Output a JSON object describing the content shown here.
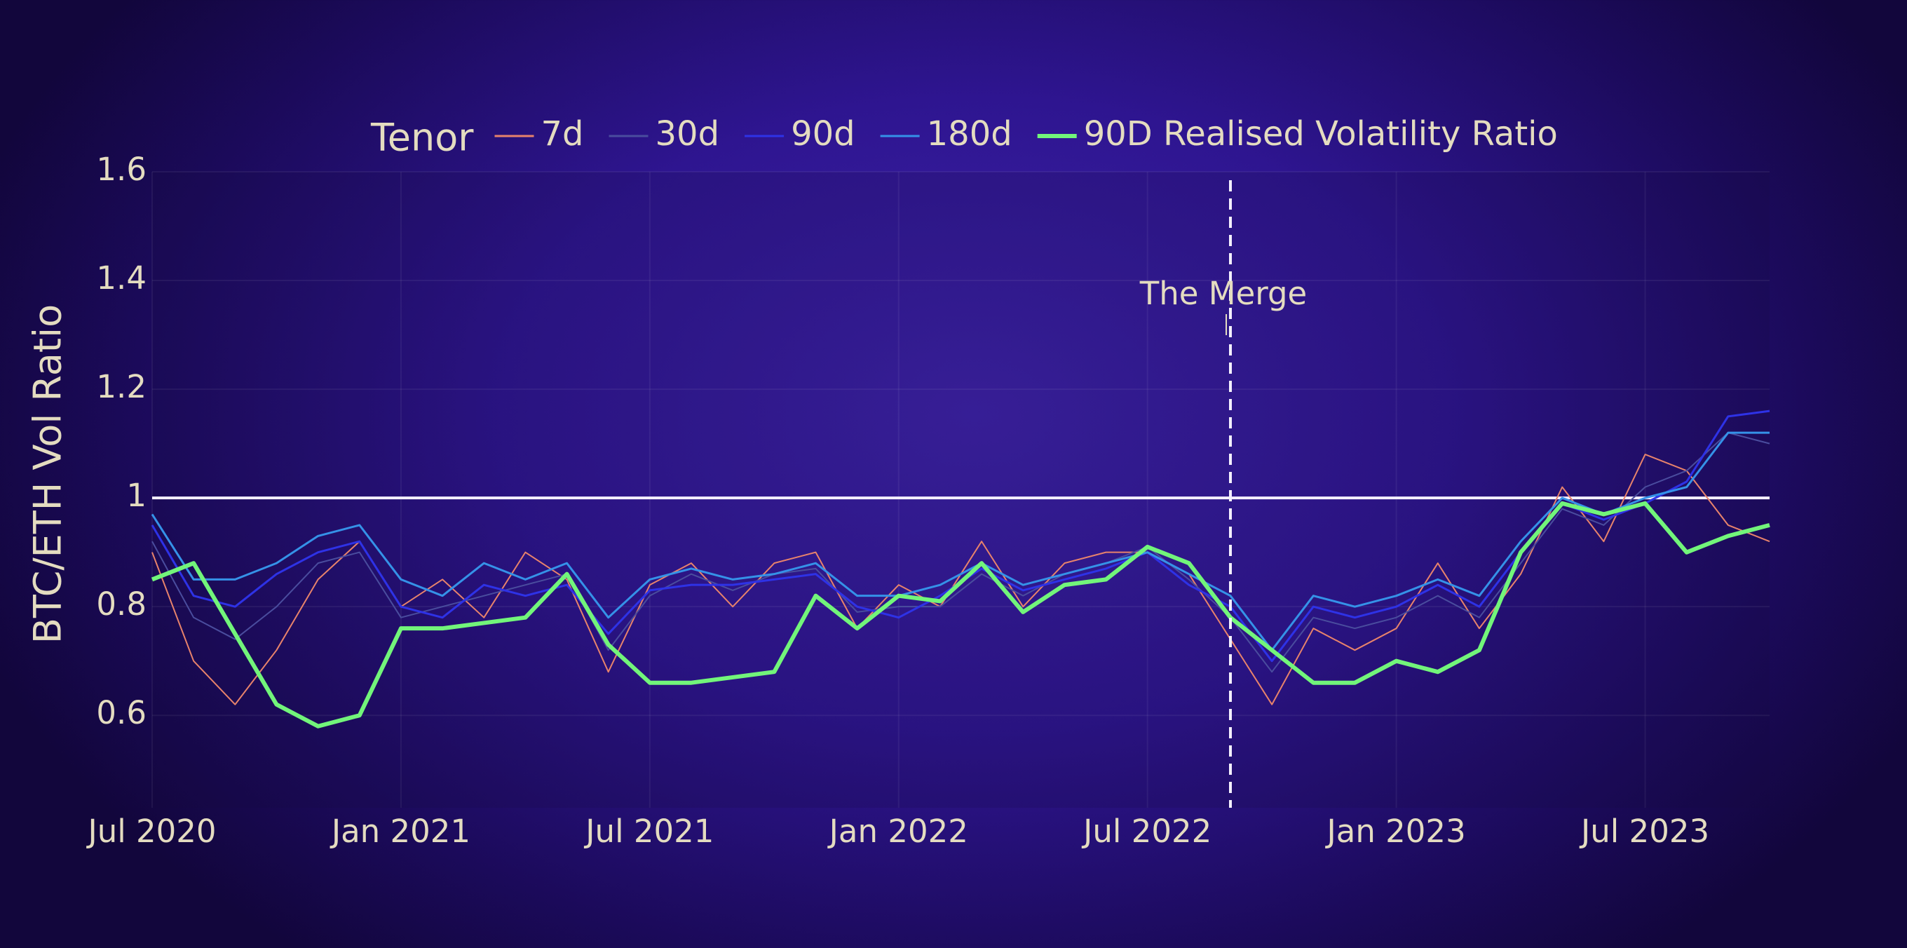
{
  "chart_data": {
    "type": "line",
    "legend_title": "Tenor",
    "y_label": "BTC/ETH Vol Ratio",
    "x": [
      "2020-07",
      "2020-08",
      "2020-09",
      "2020-10",
      "2020-11",
      "2020-12",
      "2021-01",
      "2021-02",
      "2021-03",
      "2021-04",
      "2021-05",
      "2021-06",
      "2021-07",
      "2021-08",
      "2021-09",
      "2021-10",
      "2021-11",
      "2021-12",
      "2022-01",
      "2022-02",
      "2022-03",
      "2022-04",
      "2022-05",
      "2022-06",
      "2022-07",
      "2022-08",
      "2022-09",
      "2022-10",
      "2022-11",
      "2022-12",
      "2023-01",
      "2023-02",
      "2023-03",
      "2023-04",
      "2023-05",
      "2023-06",
      "2023-07",
      "2023-08",
      "2023-09",
      "2023-10"
    ],
    "series": [
      {
        "name": "7d",
        "color": "#e8836b",
        "width": 2,
        "values": [
          0.9,
          0.7,
          0.62,
          0.72,
          0.85,
          0.92,
          0.8,
          0.85,
          0.78,
          0.9,
          0.85,
          0.68,
          0.84,
          0.88,
          0.8,
          0.88,
          0.9,
          0.76,
          0.84,
          0.8,
          0.92,
          0.8,
          0.88,
          0.9,
          0.9,
          0.86,
          0.74,
          0.62,
          0.76,
          0.72,
          0.76,
          0.88,
          0.76,
          0.86,
          1.02,
          0.92,
          1.08,
          1.05,
          0.95,
          0.92
        ]
      },
      {
        "name": "30d",
        "color": "#4a4d9e",
        "width": 2,
        "values": [
          0.92,
          0.78,
          0.74,
          0.8,
          0.88,
          0.9,
          0.78,
          0.8,
          0.82,
          0.84,
          0.86,
          0.72,
          0.82,
          0.86,
          0.83,
          0.86,
          0.87,
          0.79,
          0.8,
          0.8,
          0.86,
          0.82,
          0.86,
          0.88,
          0.91,
          0.85,
          0.78,
          0.68,
          0.78,
          0.76,
          0.78,
          0.82,
          0.78,
          0.88,
          0.98,
          0.95,
          1.02,
          1.05,
          1.12,
          1.1
        ]
      },
      {
        "name": "90d",
        "color": "#2e32e6",
        "width": 3,
        "values": [
          0.95,
          0.82,
          0.8,
          0.86,
          0.9,
          0.92,
          0.8,
          0.78,
          0.84,
          0.82,
          0.84,
          0.75,
          0.83,
          0.84,
          0.84,
          0.85,
          0.86,
          0.8,
          0.78,
          0.82,
          0.87,
          0.83,
          0.85,
          0.87,
          0.9,
          0.84,
          0.8,
          0.7,
          0.8,
          0.78,
          0.8,
          0.84,
          0.8,
          0.9,
          0.99,
          0.96,
          0.99,
          1.03,
          1.15,
          1.16
        ]
      },
      {
        "name": "180d",
        "color": "#3592e8",
        "width": 3,
        "values": [
          0.97,
          0.85,
          0.85,
          0.88,
          0.93,
          0.95,
          0.85,
          0.82,
          0.88,
          0.85,
          0.88,
          0.78,
          0.85,
          0.87,
          0.85,
          0.86,
          0.88,
          0.82,
          0.82,
          0.84,
          0.88,
          0.84,
          0.86,
          0.88,
          0.9,
          0.86,
          0.82,
          0.72,
          0.82,
          0.8,
          0.82,
          0.85,
          0.82,
          0.92,
          1.0,
          0.97,
          1.0,
          1.02,
          1.12,
          1.12
        ]
      },
      {
        "name": "90D Realised Volatility Ratio",
        "color": "#72f57a",
        "width": 6,
        "values": [
          0.85,
          0.88,
          0.75,
          0.62,
          0.58,
          0.6,
          0.76,
          0.76,
          0.77,
          0.78,
          0.86,
          0.73,
          0.66,
          0.66,
          0.67,
          0.68,
          0.82,
          0.76,
          0.82,
          0.81,
          0.88,
          0.79,
          0.84,
          0.85,
          0.91,
          0.88,
          0.78,
          0.72,
          0.66,
          0.66,
          0.7,
          0.68,
          0.72,
          0.9,
          0.99,
          0.97,
          0.99,
          0.9,
          0.93,
          0.95
        ]
      }
    ],
    "xlim": [
      "2020-07",
      "2023-10"
    ],
    "xticks": [
      {
        "value": "2020-07",
        "label": "Jul 2020"
      },
      {
        "value": "2021-01",
        "label": "Jan 2021"
      },
      {
        "value": "2021-07",
        "label": "Jul 2021"
      },
      {
        "value": "2022-01",
        "label": "Jan 2022"
      },
      {
        "value": "2022-07",
        "label": "Jul 2022"
      },
      {
        "value": "2023-01",
        "label": "Jan 2023"
      },
      {
        "value": "2023-07",
        "label": "Jul 2023"
      }
    ],
    "ylim": [
      0.43,
      1.6
    ],
    "yticks": [
      0.6,
      0.8,
      1,
      1.2,
      1.4,
      1.6
    ],
    "reference_line": 1,
    "annotations": [
      {
        "text": "The Merge",
        "x": "2022-09"
      }
    ],
    "grid": true
  }
}
